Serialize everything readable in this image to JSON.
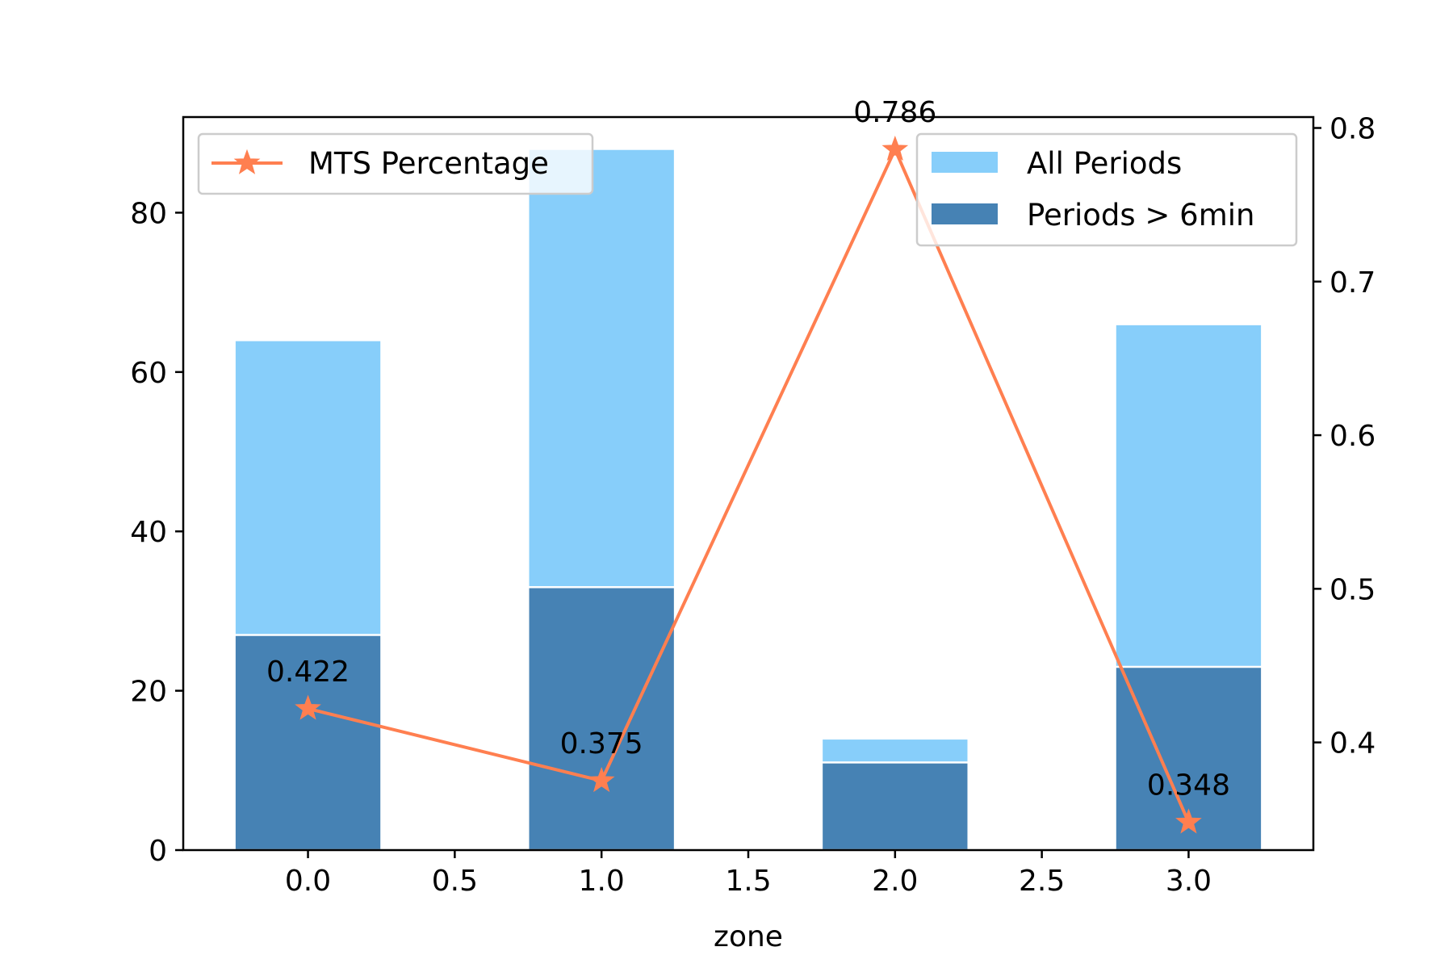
{
  "chart_data": {
    "type": "bar",
    "x": [
      0.0,
      1.0,
      2.0,
      3.0
    ],
    "xlabel": "zone",
    "xlim": [
      -0.425,
      3.425
    ],
    "x_ticks": [
      0.0,
      0.5,
      1.0,
      1.5,
      2.0,
      2.5,
      3.0
    ],
    "x_tick_labels": [
      "0.0",
      "0.5",
      "1.0",
      "1.5",
      "2.0",
      "2.5",
      "3.0"
    ],
    "ylim": [
      0,
      92
    ],
    "y_ticks": [
      0,
      20,
      40,
      60,
      80
    ],
    "y_tick_labels": [
      "0",
      "20",
      "40",
      "60",
      "80"
    ],
    "y2lim": [
      0.3299,
      0.8071
    ],
    "y2_ticks": [
      0.4,
      0.5,
      0.6,
      0.7,
      0.8
    ],
    "y2_tick_labels": [
      "0.4",
      "0.5",
      "0.6",
      "0.7",
      "0.8"
    ],
    "bar_width": 0.5,
    "series": [
      {
        "name": "All Periods",
        "type": "bar",
        "axis": "left",
        "values": [
          64,
          88,
          14,
          66
        ],
        "color": "#87cefa"
      },
      {
        "name": "Periods > 6min",
        "type": "bar",
        "axis": "left",
        "values": [
          27,
          33,
          11,
          23
        ],
        "color": "#4682b4"
      },
      {
        "name": "MTS Percentage",
        "type": "line",
        "axis": "right",
        "marker": "star",
        "values": [
          0.422,
          0.375,
          0.786,
          0.348
        ],
        "labels": [
          "0.422",
          "0.375",
          "0.786",
          "0.348"
        ],
        "color": "#ff7f50"
      }
    ],
    "legends": [
      {
        "placement": "upper-left",
        "entries": [
          "MTS Percentage"
        ]
      },
      {
        "placement": "upper-right",
        "entries": [
          "All Periods",
          "Periods > 6min"
        ]
      }
    ],
    "grid": false
  }
}
